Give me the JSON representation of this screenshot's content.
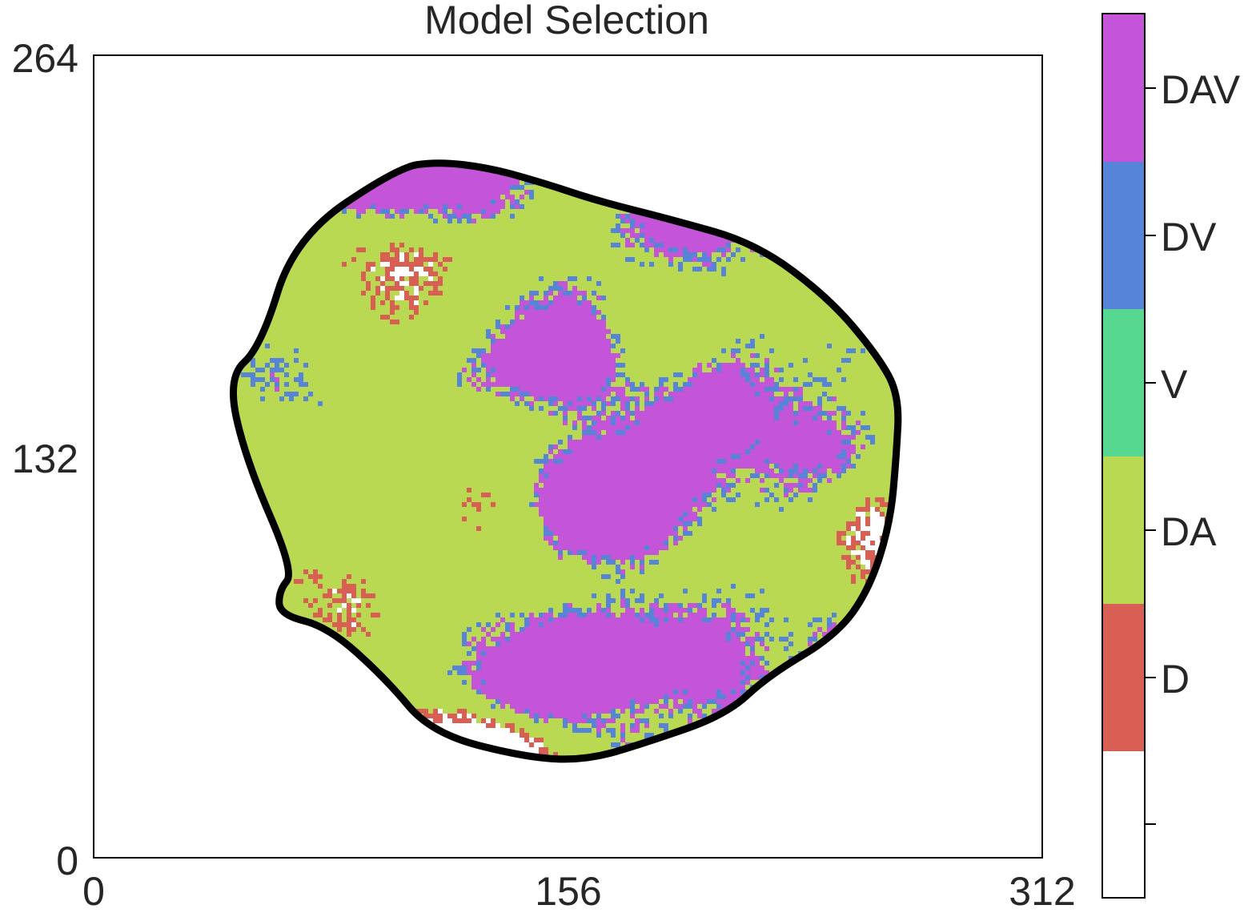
{
  "chart_data": {
    "type": "heatmap",
    "title": "Model Selection",
    "xlabel": "",
    "ylabel": "",
    "xlim": [
      0,
      312
    ],
    "ylim": [
      0,
      264
    ],
    "xticks": [
      0,
      156,
      312
    ],
    "yticks": [
      0,
      132,
      264
    ],
    "x_tick_labels": [
      "0",
      "156",
      "312"
    ],
    "y_tick_labels": [
      "0",
      "132",
      "264"
    ],
    "categories": [
      "",
      "D",
      "DA",
      "V",
      "DV",
      "DAV"
    ],
    "category_colors": [
      "#ffffff",
      "#d95f54",
      "#b8d951",
      "#57d890",
      "#5584d8",
      "#c455d8"
    ],
    "category_fractions": [
      0.12,
      0.08,
      0.42,
      0.0,
      0.04,
      0.34
    ],
    "region_boundary": [
      [
        55,
        168
      ],
      [
        66,
        204
      ],
      [
        100,
        227
      ],
      [
        113,
        229
      ],
      [
        130,
        227
      ],
      [
        148,
        222
      ],
      [
        166,
        216
      ],
      [
        190,
        210
      ],
      [
        218,
        202
      ],
      [
        242,
        184
      ],
      [
        258,
        165
      ],
      [
        265,
        152
      ],
      [
        264,
        132
      ],
      [
        262,
        110
      ],
      [
        255,
        88
      ],
      [
        244,
        73
      ],
      [
        222,
        60
      ],
      [
        208,
        47
      ],
      [
        182,
        38
      ],
      [
        162,
        32
      ],
      [
        142,
        33
      ],
      [
        111,
        41
      ],
      [
        96,
        59
      ],
      [
        77,
        76
      ],
      [
        61,
        80
      ],
      [
        61,
        88
      ],
      [
        66,
        94
      ],
      [
        50,
        131
      ],
      [
        44,
        158
      ]
    ],
    "legend": "colorbar-right",
    "grid": false
  }
}
